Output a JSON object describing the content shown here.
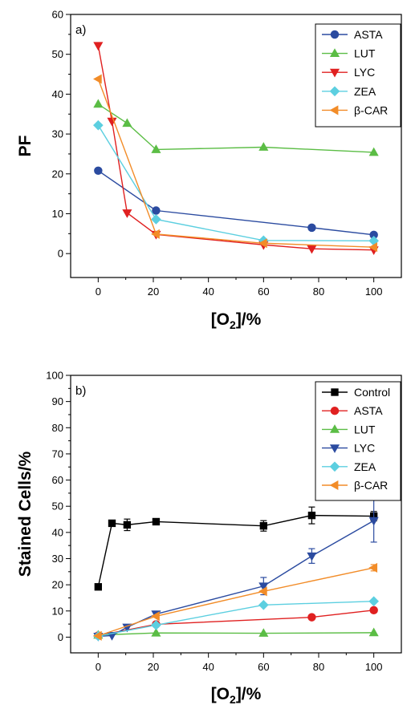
{
  "chart_data": [
    {
      "type": "line",
      "panel_label": "a)",
      "title": "",
      "xlabel": "[O2]/%",
      "xlabel_main": "[O",
      "xlabel_sub": "2",
      "xlabel_tail": "]/%",
      "ylabel": "PF",
      "xlim": [
        -10,
        110
      ],
      "ylim": [
        -6,
        60
      ],
      "xticks": [
        0,
        20,
        40,
        60,
        80,
        100
      ],
      "yticks": [
        0,
        10,
        20,
        30,
        40,
        50,
        60
      ],
      "grid": false,
      "legend_position": "top-right",
      "series": [
        {
          "name": "ASTA",
          "color": "#2b4ba0",
          "marker": "circle",
          "points": [
            [
              0,
              20.8
            ],
            [
              21,
              10.8
            ],
            [
              77.5,
              6.5
            ],
            [
              100,
              4.7
            ]
          ]
        },
        {
          "name": "LUT",
          "color": "#5bbd45",
          "marker": "triangle-up",
          "points": [
            [
              0,
              37.5
            ],
            [
              10.5,
              32.7
            ],
            [
              21,
              26.1
            ],
            [
              60,
              26.7
            ],
            [
              100,
              25.4
            ]
          ]
        },
        {
          "name": "LYC",
          "color": "#e02020",
          "marker": "triangle-down",
          "points": [
            [
              0,
              52.2
            ],
            [
              5,
              33.2
            ],
            [
              10.5,
              10.2
            ],
            [
              21,
              4.8
            ],
            [
              60,
              2.2
            ],
            [
              77.5,
              1.2
            ],
            [
              100,
              0.9
            ]
          ]
        },
        {
          "name": "ZEA",
          "color": "#5ccfe0",
          "marker": "diamond",
          "points": [
            [
              0,
              32.2
            ],
            [
              21,
              8.6
            ],
            [
              60,
              3.3
            ],
            [
              100,
              3.2
            ]
          ]
        },
        {
          "name": "β-CAR",
          "color": "#f28c28",
          "marker": "triangle-left",
          "points": [
            [
              0,
              43.8
            ],
            [
              21,
              4.9
            ],
            [
              60,
              2.6
            ],
            [
              100,
              1.6
            ]
          ]
        }
      ]
    },
    {
      "type": "line",
      "panel_label": "b)",
      "title": "",
      "xlabel": "[O2]/%",
      "xlabel_main": "[O",
      "xlabel_sub": "2",
      "xlabel_tail": "]/%",
      "ylabel": "Stained Cells/%",
      "xlim": [
        -10,
        110
      ],
      "ylim": [
        -6,
        100
      ],
      "xticks": [
        0,
        20,
        40,
        60,
        80,
        100
      ],
      "yticks": [
        0,
        10,
        20,
        30,
        40,
        50,
        60,
        70,
        80,
        90,
        100
      ],
      "grid": false,
      "legend_position": "top-right",
      "series": [
        {
          "name": "Control",
          "color": "#000000",
          "marker": "square",
          "points": [
            [
              0,
              19.2
            ],
            [
              5,
              43.5
            ],
            [
              10.5,
              42.9
            ],
            [
              21,
              44.1
            ],
            [
              60,
              42.5
            ],
            [
              77.5,
              46.5
            ],
            [
              100,
              46.2
            ]
          ],
          "errors": [
            0,
            0.8,
            2.2,
            0.8,
            2.0,
            3.2,
            1.8
          ]
        },
        {
          "name": "ASTA",
          "color": "#e02020",
          "marker": "circle",
          "points": [
            [
              0,
              0.6
            ],
            [
              21,
              4.9
            ],
            [
              77.5,
              7.6
            ],
            [
              100,
              10.3
            ]
          ],
          "errors": [
            0,
            0,
            0,
            0
          ]
        },
        {
          "name": "LUT",
          "color": "#5bbd45",
          "marker": "triangle-up",
          "points": [
            [
              0,
              0.8
            ],
            [
              21,
              1.6
            ],
            [
              60,
              1.5
            ],
            [
              100,
              1.7
            ]
          ],
          "errors": [
            0,
            0,
            0,
            0
          ]
        },
        {
          "name": "LYC",
          "color": "#2b4ba0",
          "marker": "triangle-down",
          "points": [
            [
              0,
              0.3
            ],
            [
              5,
              0.6
            ],
            [
              10.5,
              3.8
            ],
            [
              21,
              8.8
            ],
            [
              60,
              19.5
            ],
            [
              77.5,
              31.0
            ],
            [
              100,
              44.5
            ]
          ],
          "errors": [
            0,
            0,
            0,
            1.0,
            3.3,
            2.8,
            8.2
          ]
        },
        {
          "name": "ZEA",
          "color": "#5ccfe0",
          "marker": "diamond",
          "points": [
            [
              0,
              0.4
            ],
            [
              21,
              4.6
            ],
            [
              60,
              12.3
            ],
            [
              100,
              13.7
            ]
          ],
          "errors": [
            0,
            0,
            0,
            0
          ]
        },
        {
          "name": "β-CAR",
          "color": "#f28c28",
          "marker": "triangle-left",
          "points": [
            [
              0,
              0.5
            ],
            [
              21,
              8.0
            ],
            [
              60,
              17.5
            ],
            [
              100,
              26.5
            ]
          ],
          "errors": [
            0,
            0,
            0,
            1.2
          ]
        }
      ]
    }
  ]
}
